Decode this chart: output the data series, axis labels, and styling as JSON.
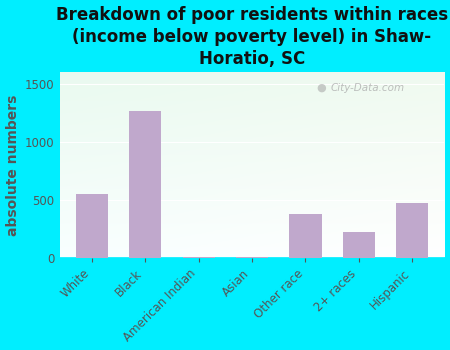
{
  "title": "Breakdown of poor residents within races\n(income below poverty level) in Shaw-\nHoratio, SC",
  "categories": [
    "White",
    "Black",
    "American Indian",
    "Asian",
    "Other race",
    "2+ races",
    "Hispanic"
  ],
  "values": [
    550,
    1270,
    5,
    5,
    375,
    220,
    470
  ],
  "bar_color": "#c0a8cc",
  "ylabel": "absolute numbers",
  "ylim": [
    0,
    1600
  ],
  "yticks": [
    0,
    500,
    1000,
    1500
  ],
  "background_color": "#00eeff",
  "plot_bg_left": "#d8e8c8",
  "plot_bg_right": "#f0f0e8",
  "watermark": "City-Data.com",
  "title_fontsize": 12,
  "title_color": "#111111",
  "ylabel_fontsize": 10,
  "ylabel_color": "#555555",
  "tick_fontsize": 8.5,
  "tick_color": "#555555"
}
